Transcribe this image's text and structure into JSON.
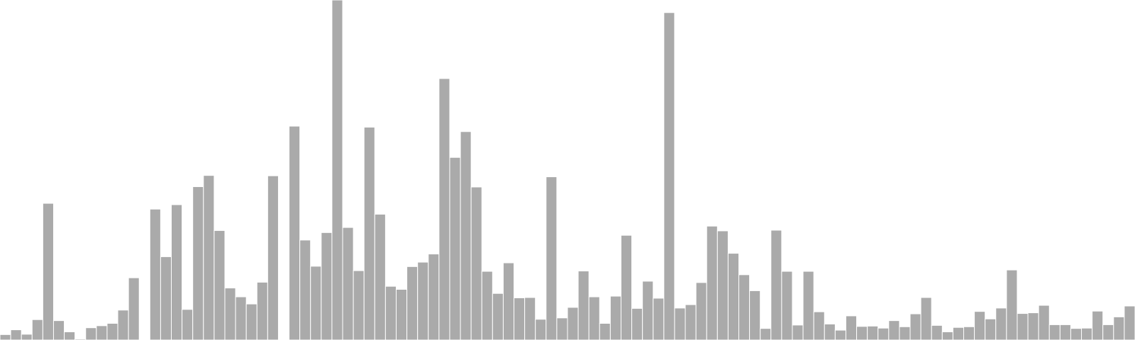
{
  "chart_data": {
    "type": "bar",
    "colors": {
      "bar": "#aaaaaa",
      "bar_edge": "#ffffff",
      "background": "#ffffff"
    },
    "grid": false,
    "legend": "none",
    "ylim": [
      0,
      100
    ],
    "values": [
      1.6,
      3.0,
      1.7,
      6.0,
      40.2,
      5.7,
      2.4,
      0.3,
      3.6,
      4.2,
      4.9,
      8.8,
      18.3,
      0.0,
      38.5,
      24.5,
      39.8,
      9.0,
      45.1,
      48.4,
      32.2,
      15.3,
      12.7,
      10.6,
      17.0,
      48.3,
      0.0,
      62.9,
      29.4,
      21.7,
      31.6,
      100.0,
      33.1,
      20.4,
      62.6,
      37.0,
      15.8,
      14.9,
      21.6,
      22.9,
      25.3,
      76.9,
      53.7,
      61.3,
      45.0,
      20.2,
      13.7,
      22.7,
      12.4,
      12.5,
      6.1,
      48.0,
      6.5,
      9.6,
      20.3,
      12.7,
      4.9,
      12.9,
      30.8,
      9.3,
      17.3,
      12.3,
      96.3,
      9.4,
      10.4,
      16.9,
      33.5,
      32.1,
      25.5,
      19.2,
      14.5,
      3.4,
      32.3,
      20.2,
      4.4,
      20.2,
      8.3,
      4.7,
      2.9,
      7.1,
      4.0,
      4.1,
      3.5,
      5.7,
      3.9,
      7.7,
      12.5,
      4.3,
      2.4,
      3.7,
      3.9,
      8.4,
      6.2,
      9.4,
      20.6,
      7.8,
      8.0,
      10.2,
      4.5,
      4.5,
      3.4,
      3.5,
      8.5,
      4.5,
      6.8,
      10.0
    ]
  }
}
